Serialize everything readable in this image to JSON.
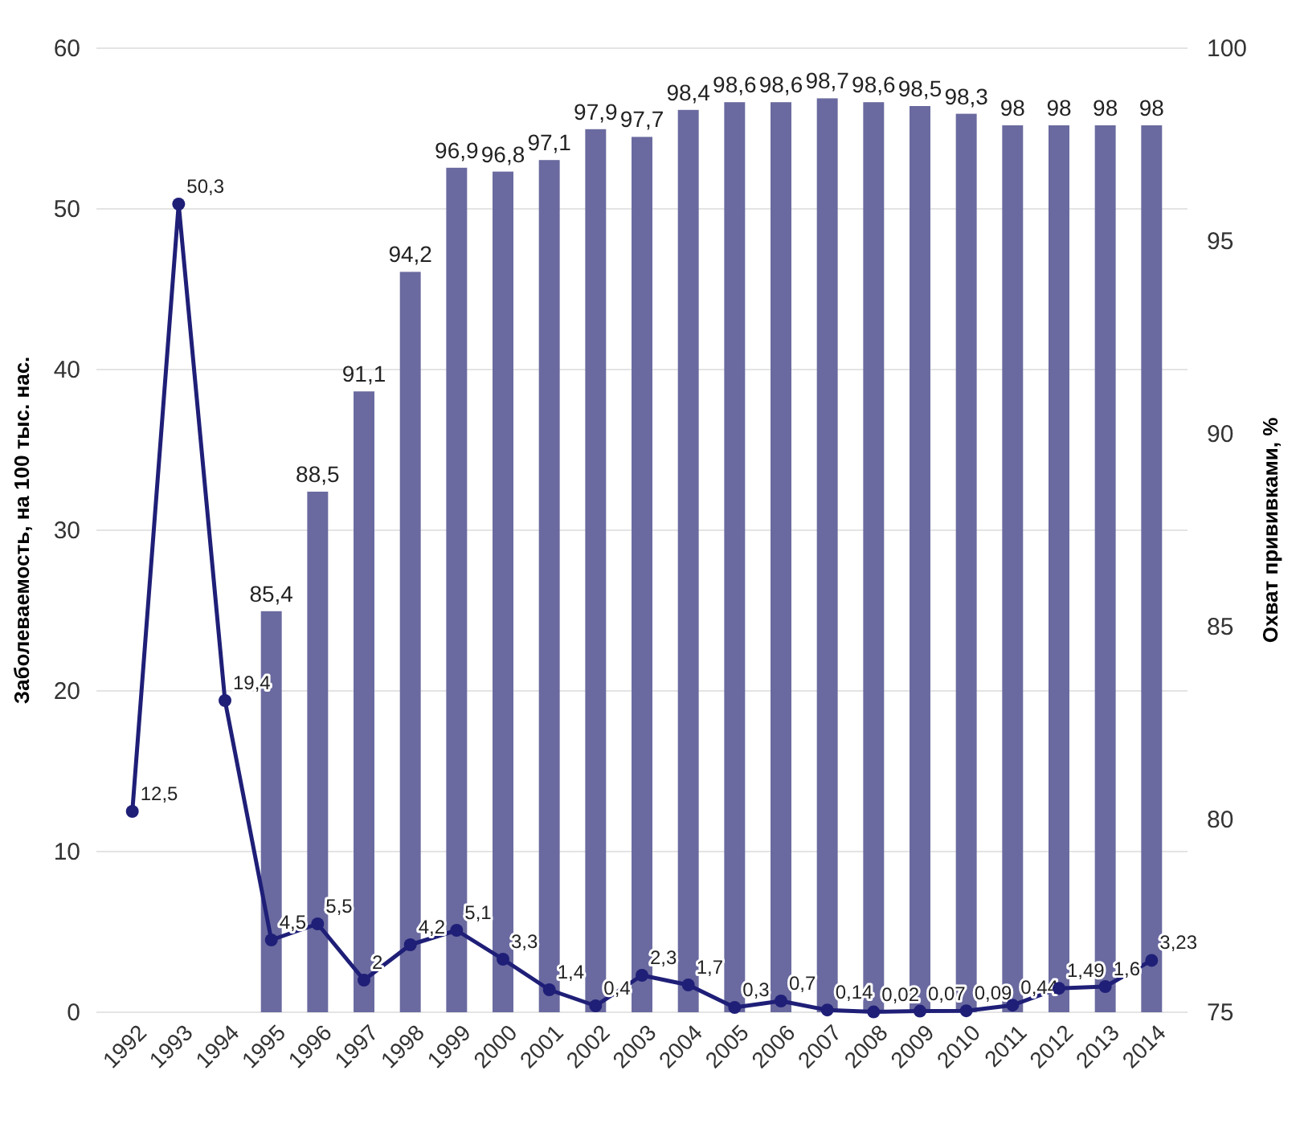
{
  "chart_data": {
    "type": "bar",
    "ylabel": "Заболеваемость, на 100 тыс. нас.",
    "y2label": "Охват прививками, %",
    "categories": [
      "1992",
      "1993",
      "1994",
      "1995",
      "1996",
      "1997",
      "1998",
      "1999",
      "2000",
      "2001",
      "2002",
      "2003",
      "2004",
      "2005",
      "2006",
      "2007",
      "2008",
      "2009",
      "2010",
      "2011",
      "2012",
      "2013",
      "2014"
    ],
    "series": [
      {
        "axis": "y2",
        "color": "#6a6aa0",
        "values": [
          null,
          null,
          null,
          85.4,
          88.5,
          91.1,
          94.2,
          96.9,
          96.8,
          97.1,
          97.9,
          97.7,
          98.4,
          98.6,
          98.6,
          98.7,
          98.6,
          98.5,
          98.3,
          98,
          98,
          98,
          98
        ],
        "value_labels": [
          null,
          null,
          null,
          "85,4",
          "88,5",
          "91,1",
          "94,2",
          "96,9",
          "96,8",
          "97,1",
          "97,9",
          "97,7",
          "98,4",
          "98,6",
          "98,6",
          "98,7",
          "98,6",
          "98,5",
          "98,3",
          "98",
          "98",
          "98",
          "98"
        ]
      },
      {
        "type": "line",
        "axis": "y",
        "color": "#1f1f78",
        "values": [
          12.5,
          50.3,
          19.4,
          4.5,
          5.5,
          2,
          4.2,
          5.1,
          3.3,
          1.4,
          0.4,
          2.3,
          1.7,
          0.3,
          0.7,
          0.14,
          0.02,
          0.07,
          0.09,
          0.44,
          1.49,
          1.6,
          3.23
        ],
        "value_labels": [
          "12,5",
          "50,3",
          "19,4",
          "4,5",
          "5,5",
          "2",
          "4,2",
          "5,1",
          "3,3",
          "1,4",
          "0,4",
          "2,3",
          "1,7",
          "0,3",
          "0,7",
          "0,14",
          "0,02",
          "0,07",
          "0,09",
          "0,44",
          "1,49",
          "1,6",
          "3,23"
        ]
      }
    ],
    "ylim": [
      0,
      60
    ],
    "yticks": [
      0,
      10,
      20,
      30,
      40,
      50,
      60
    ],
    "y2lim": [
      75,
      100
    ],
    "y2ticks": [
      75,
      80,
      85,
      90,
      95,
      100
    ],
    "grid": "y",
    "marker": "circle",
    "line_style": "solid"
  }
}
